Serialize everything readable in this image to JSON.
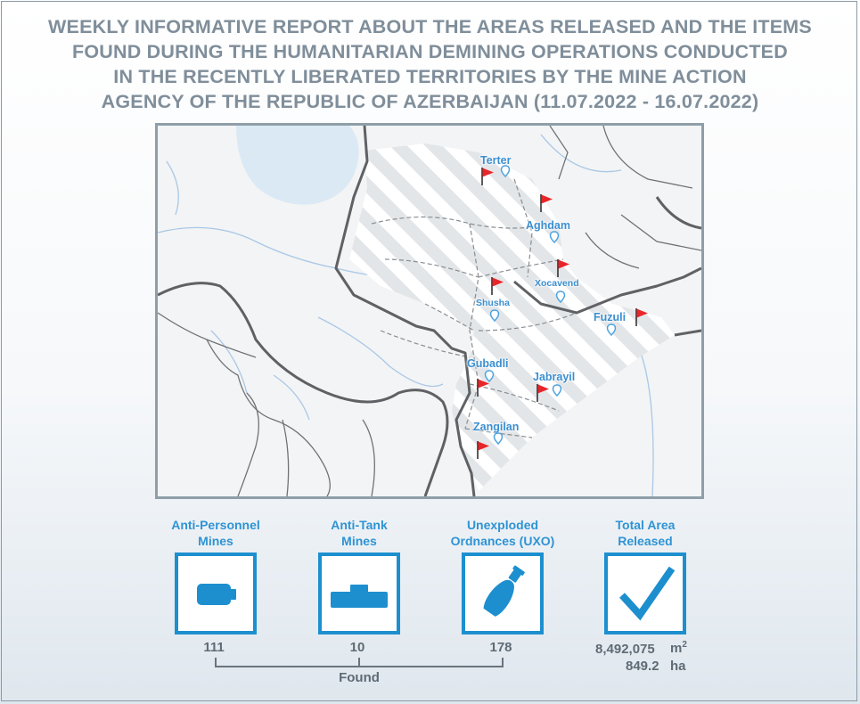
{
  "title_lines": [
    "WEEKLY INFORMATIVE REPORT ABOUT THE AREAS RELEASED AND THE ITEMS",
    "FOUND DURING THE HUMANITARIAN DEMINING OPERATIONS CONDUCTED",
    "IN THE RECENTLY LIBERATED TERRITORIES BY THE MINE ACTION",
    "AGENCY OF THE REPUBLIC OF AZERBAIJAN (11.07.2022 - 16.07.2022)"
  ],
  "map": {
    "cities": [
      {
        "name": "Terter",
        "icon": "map-pin-icon",
        "flag": "red-flag-icon"
      },
      {
        "name": "Aghdam",
        "icon": "map-pin-icon",
        "flag": "red-flag-icon"
      },
      {
        "name": "Xocavend",
        "icon": "map-pin-icon",
        "flag": "red-flag-icon"
      },
      {
        "name": "Shusha",
        "icon": "map-pin-icon",
        "flag": "red-flag-icon"
      },
      {
        "name": "Fuzuli",
        "icon": "map-pin-icon",
        "flag": "red-flag-icon"
      },
      {
        "name": "Gubadli",
        "icon": "map-pin-icon",
        "flag": "red-flag-icon"
      },
      {
        "name": "Jabrayil",
        "icon": "map-pin-icon",
        "flag": "red-flag-icon"
      },
      {
        "name": "Zangilan",
        "icon": "map-pin-icon",
        "flag": "red-flag-icon"
      }
    ],
    "colors": {
      "flag": "#e8262a",
      "city_label": "#3b8fd0",
      "lake": "#dbe9f5",
      "river": "#a9c8e6",
      "border": "#5f6164",
      "hatch": "#e3e6e9"
    }
  },
  "stats": {
    "anti_personnel": {
      "label_1": "Anti-Personnel",
      "label_2": "Mines",
      "value": "111",
      "icon": "anti-personnel-mine-icon"
    },
    "anti_tank": {
      "label_1": "Anti-Tank",
      "label_2": "Mines",
      "value": "10",
      "icon": "anti-tank-mine-icon"
    },
    "uxo": {
      "label_1": "Unexploded",
      "label_2": "Ordnances (UXO)",
      "value": "178",
      "icon": "uxo-bomb-icon"
    },
    "total_area": {
      "label_1": "Total Area",
      "label_2": "Released",
      "value_m2": "8,492,075",
      "unit_m2": "m",
      "unit_m2_exp": "2",
      "value_ha": "849.2",
      "unit_ha": "ha",
      "icon": "checkmark-icon"
    },
    "found_label": "Found",
    "accent": "#1d8fcf"
  }
}
